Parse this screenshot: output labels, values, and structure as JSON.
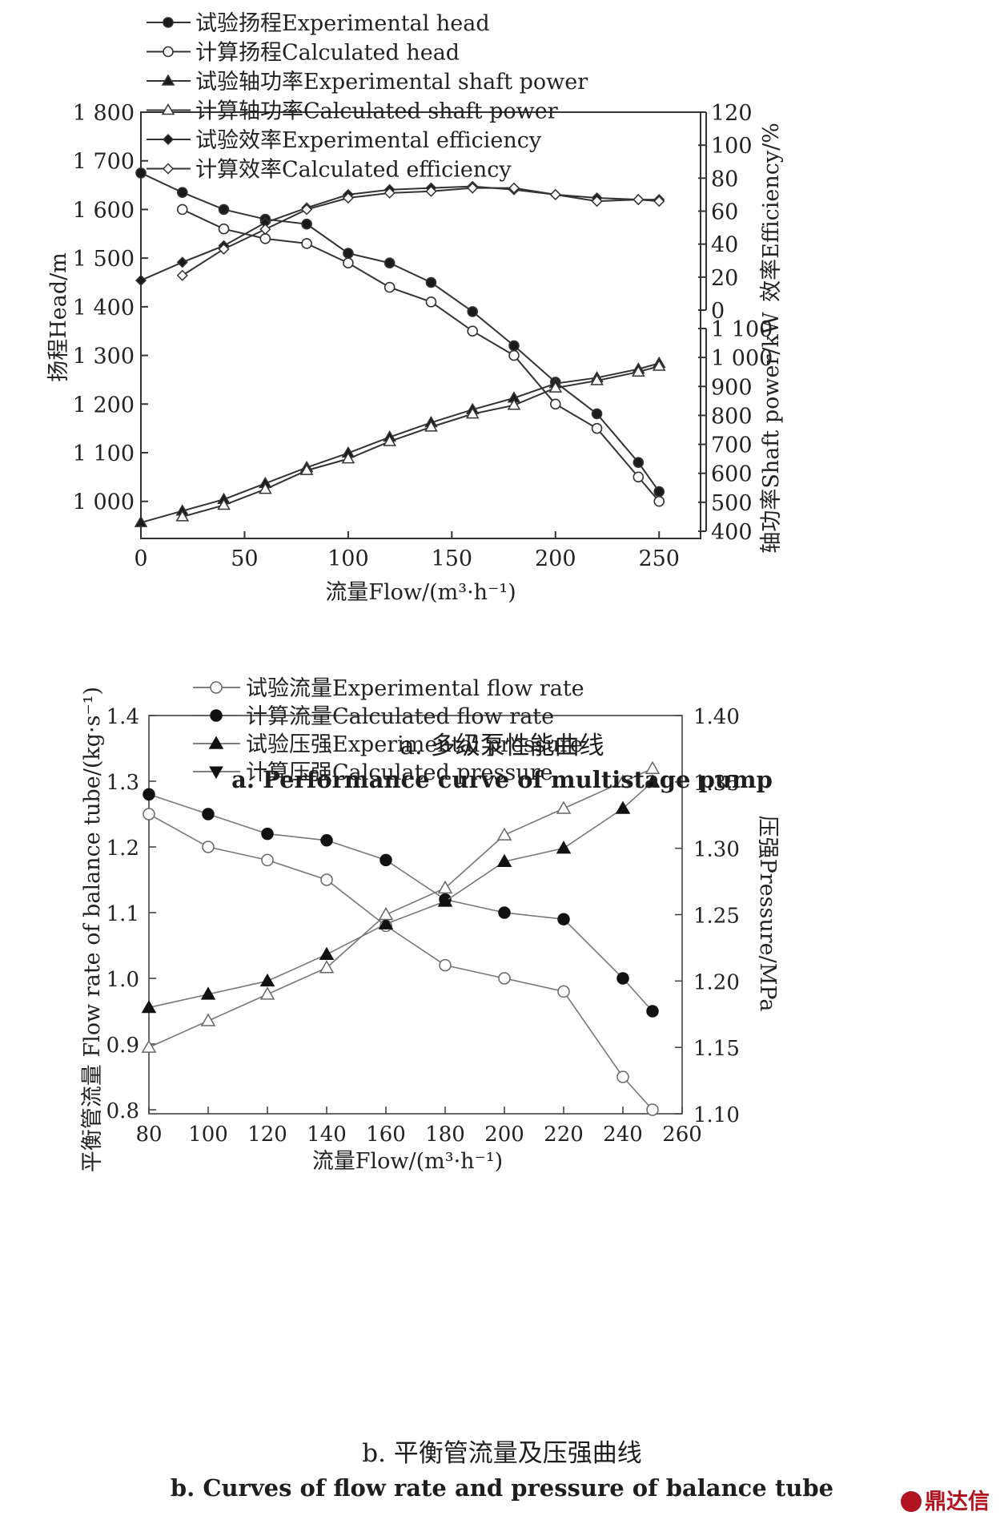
{
  "chart_data": [
    {
      "type": "line",
      "caption_cn": "a.  多级泵性能曲线",
      "caption_en": "a. Performance curve of multistage pump",
      "xlabel": "流量Flow/(m³·h⁻¹)",
      "xlim": [
        0,
        270
      ],
      "xticks": [
        "0",
        "50",
        "100",
        "150",
        "200",
        "250"
      ],
      "ylabel_left": "扬程Head/m",
      "ylim_left": [
        960,
        1800
      ],
      "yticks_left": [
        "1 000",
        "1 100",
        "1 200",
        "1 300",
        "1 400",
        "1 500",
        "1 600",
        "1 700",
        "1 800"
      ],
      "ylabel_right_top": "效率Efficiency/%",
      "ylim_right_top": [
        0,
        120
      ],
      "yticks_right_top": [
        "0",
        "20",
        "40",
        "60",
        "80",
        "100",
        "120"
      ],
      "ylabel_right_bottom": "轴功率Shaft power/kW",
      "ylim_right_bottom": [
        400,
        1100
      ],
      "yticks_right_bottom": [
        "400",
        "500",
        "600",
        "700",
        "800",
        "900",
        "1 000",
        "1 100"
      ],
      "legend_position": "top-left",
      "series": [
        {
          "name": "试验扬程Experimental head",
          "axis": "left",
          "marker": "filled-circle",
          "x": [
            0,
            20,
            40,
            60,
            80,
            100,
            120,
            140,
            160,
            180,
            200,
            220,
            240,
            250
          ],
          "y": [
            1675,
            1635,
            1600,
            1580,
            1570,
            1510,
            1490,
            1450,
            1390,
            1320,
            1245,
            1180,
            1080,
            1020
          ]
        },
        {
          "name": "计算扬程Calculated head",
          "axis": "left",
          "marker": "open-circle",
          "x": [
            20,
            40,
            60,
            80,
            100,
            120,
            140,
            160,
            180,
            200,
            220,
            240,
            250
          ],
          "y": [
            1600,
            1560,
            1540,
            1530,
            1490,
            1440,
            1410,
            1350,
            1300,
            1200,
            1150,
            1050,
            1000
          ]
        },
        {
          "name": "试验轴功率Experimental shaft power",
          "axis": "right_bottom",
          "marker": "filled-triangle",
          "x": [
            0,
            20,
            40,
            60,
            80,
            100,
            120,
            140,
            160,
            180,
            200,
            220,
            240,
            250
          ],
          "y": [
            430,
            470,
            510,
            565,
            620,
            670,
            725,
            775,
            820,
            860,
            910,
            930,
            960,
            980
          ]
        },
        {
          "name": "计算轴功率Calculated shaft power",
          "axis": "right_bottom",
          "marker": "open-triangle",
          "x": [
            20,
            40,
            60,
            80,
            100,
            120,
            140,
            160,
            180,
            200,
            220,
            240,
            250
          ],
          "y": [
            450,
            490,
            545,
            610,
            650,
            710,
            760,
            805,
            835,
            895,
            920,
            950,
            970
          ]
        },
        {
          "name": "试验效率Experimental efficiency",
          "axis": "right_top",
          "marker": "filled-diamond",
          "x": [
            0,
            20,
            40,
            60,
            80,
            100,
            120,
            140,
            160,
            180,
            200,
            220,
            240,
            250
          ],
          "y": [
            18,
            29,
            39,
            53,
            62,
            70,
            73,
            74,
            75,
            73,
            70,
            68,
            67,
            67
          ]
        },
        {
          "name": "计算效率Calculated efficiency",
          "axis": "right_top",
          "marker": "open-diamond",
          "x": [
            20,
            40,
            60,
            80,
            100,
            120,
            140,
            160,
            180,
            200,
            220,
            240,
            250
          ],
          "y": [
            21,
            37,
            49,
            61,
            68,
            71,
            72,
            74,
            74,
            70,
            66,
            67,
            66
          ]
        }
      ]
    },
    {
      "type": "line",
      "caption_cn": "b.  平衡管流量及压强曲线",
      "caption_en": "b. Curves of flow rate and pressure of balance tube",
      "xlabel": "流量Flow/(m³·h⁻¹)",
      "xlim": [
        80,
        260
      ],
      "xticks": [
        "80",
        "100",
        "120",
        "140",
        "160",
        "180",
        "200",
        "220",
        "240",
        "260"
      ],
      "ylabel_left": "平衡管流量 Flow rate of balance tube/(kg·s⁻¹)",
      "ylim_left": [
        0.75,
        1.4
      ],
      "yticks_left": [
        "0.8",
        "0.9",
        "1.0",
        "1.1",
        "1.2",
        "1.3",
        "1.4"
      ],
      "ylabel_right": "压强Pressure/MPa",
      "ylim_right": [
        1.1,
        1.4
      ],
      "yticks_right": [
        "1.10",
        "1.15",
        "1.20",
        "1.25",
        "1.30",
        "1.35",
        "1.40"
      ],
      "legend_position": "top-left",
      "series": [
        {
          "name": "试验流量Experimental flow rate",
          "axis": "left",
          "marker": "open-circle",
          "x": [
            80,
            100,
            120,
            140,
            160,
            180,
            200,
            220,
            240,
            250
          ],
          "y": [
            1.25,
            1.2,
            1.18,
            1.15,
            1.08,
            1.02,
            1.0,
            0.98,
            0.85,
            0.8
          ]
        },
        {
          "name": "计算流量Calculated flow rate",
          "axis": "left",
          "marker": "filled-circle",
          "x": [
            80,
            100,
            120,
            140,
            160,
            180,
            200,
            220,
            240,
            250
          ],
          "y": [
            1.28,
            1.25,
            1.22,
            1.21,
            1.18,
            1.12,
            1.1,
            1.09,
            1.0,
            0.95
          ]
        },
        {
          "name": "试验压强Experimental pressure",
          "axis": "right",
          "marker": "filled-triangle",
          "x": [
            80,
            100,
            120,
            140,
            160,
            180,
            200,
            220,
            240,
            250
          ],
          "y": [
            1.18,
            1.19,
            1.2,
            1.22,
            1.243,
            1.26,
            1.29,
            1.3,
            1.33,
            1.35
          ]
        },
        {
          "name": "计算压强Calculated pressure",
          "axis": "right",
          "marker": "open-triangle",
          "x": [
            80,
            100,
            120,
            140,
            160,
            180,
            200,
            220,
            240,
            250
          ],
          "y": [
            1.15,
            1.17,
            1.19,
            1.21,
            1.25,
            1.27,
            1.31,
            1.33,
            1.35,
            1.36
          ]
        }
      ]
    }
  ],
  "watermark": "鼎达信"
}
